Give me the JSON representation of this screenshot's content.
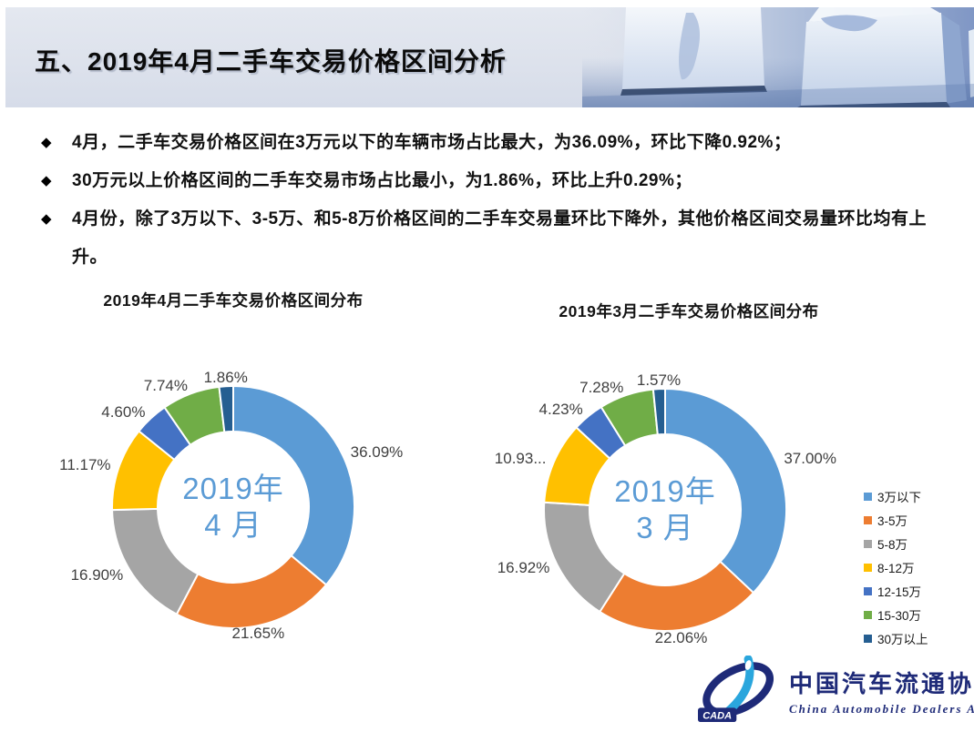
{
  "slide": {
    "title": "五、2019年4月二手车交易价格区间分析",
    "bullet_marker": "◆",
    "bullets": [
      "4月，二手车交易价格区间在3万元以下的车辆市场占比最大，为36.09%，环比下降0.92%；",
      "30万元以上价格区间的二手车交易市场占比最小，为1.86%，环比上升0.29%；",
      "4月份，除了3万以下、3-5万、和5-8万价格区间的二手车交易量环比下降外，其他价格区间交易量环比均有上升。"
    ]
  },
  "palette": [
    "#5B9BD5",
    "#ED7D31",
    "#A5A5A5",
    "#FFC000",
    "#4472C4",
    "#70AD47",
    "#255E91"
  ],
  "chart_data": [
    {
      "type": "pie",
      "donut": true,
      "title": "2019年4月二手车交易价格区间分布",
      "center_line1": "2019年",
      "center_line2": "4 月",
      "categories": [
        "3万以下",
        "3-5万",
        "5-8万",
        "8-12万",
        "12-15万",
        "15-30万",
        "30万以上"
      ],
      "values": [
        36.09,
        21.65,
        16.9,
        11.17,
        4.6,
        7.74,
        1.86
      ],
      "labels": [
        "36.09%",
        "21.65%",
        "16.90%",
        "11.17%",
        "4.60%",
        "7.74%",
        "1.86%"
      ],
      "colors": [
        "#5B9BD5",
        "#ED7D31",
        "#A5A5A5",
        "#FFC000",
        "#4472C4",
        "#70AD47",
        "#255E91"
      ],
      "legend_position": "right",
      "start_angle_deg": 0
    },
    {
      "type": "pie",
      "donut": true,
      "title": "2019年3月二手车交易价格区间分布",
      "center_line1": "2019年",
      "center_line2": "3 月",
      "categories": [
        "3万以下",
        "3-5万",
        "5-8万",
        "8-12万",
        "12-15万",
        "15-30万",
        "30万以上"
      ],
      "values": [
        37.0,
        22.06,
        16.92,
        10.93,
        4.23,
        7.28,
        1.57
      ],
      "labels": [
        "37.00%",
        "22.06%",
        "16.92%",
        "10.93...",
        "4.23%",
        "7.28%",
        "1.57%"
      ],
      "colors": [
        "#5B9BD5",
        "#ED7D31",
        "#A5A5A5",
        "#FFC000",
        "#4472C4",
        "#70AD47",
        "#255E91"
      ],
      "legend_position": "right",
      "start_angle_deg": 0
    }
  ],
  "legend": {
    "items": [
      {
        "label": "3万以下",
        "color": "#5B9BD5"
      },
      {
        "label": "3-5万",
        "color": "#ED7D31"
      },
      {
        "label": "5-8万",
        "color": "#A5A5A5"
      },
      {
        "label": "8-12万",
        "color": "#FFC000"
      },
      {
        "label": "12-15万",
        "color": "#4472C4"
      },
      {
        "label": "15-30万",
        "color": "#70AD47"
      },
      {
        "label": "30万以上",
        "color": "#255E91"
      }
    ]
  },
  "footer": {
    "logo_abbr": "CADA",
    "org_name_cn": "中国汽车流通协会",
    "org_name_en": "China Automobile Dealers Association"
  }
}
